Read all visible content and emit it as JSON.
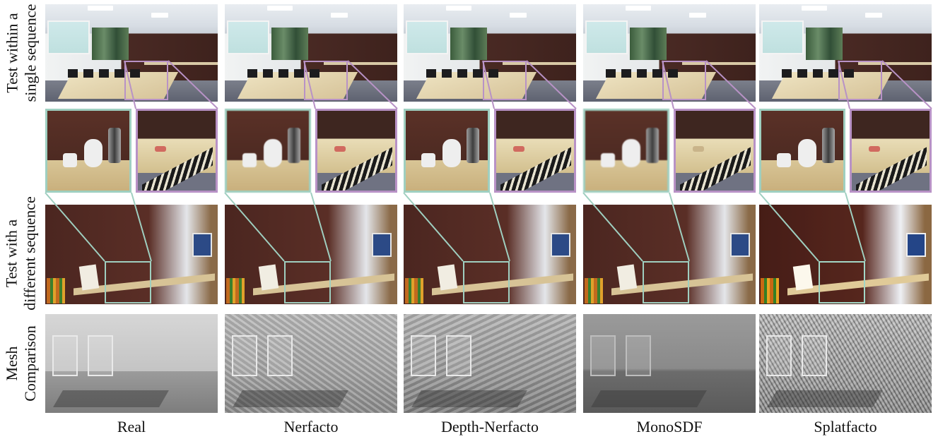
{
  "row_labels": [
    {
      "line1": "Test within a",
      "line2": "single sequence"
    },
    {
      "line1": "Test with a",
      "line2": "different sequence"
    },
    {
      "line1": "Mesh",
      "line2": "Comparison"
    }
  ],
  "columns": [
    {
      "label": "Real"
    },
    {
      "label": "Nerfacto"
    },
    {
      "label": "Depth-Nerfacto"
    },
    {
      "label": "MonoSDF"
    },
    {
      "label": "Splatfacto"
    }
  ],
  "colors": {
    "zoom_green": "#9fcfc0",
    "zoom_purple": "#b892c6"
  }
}
